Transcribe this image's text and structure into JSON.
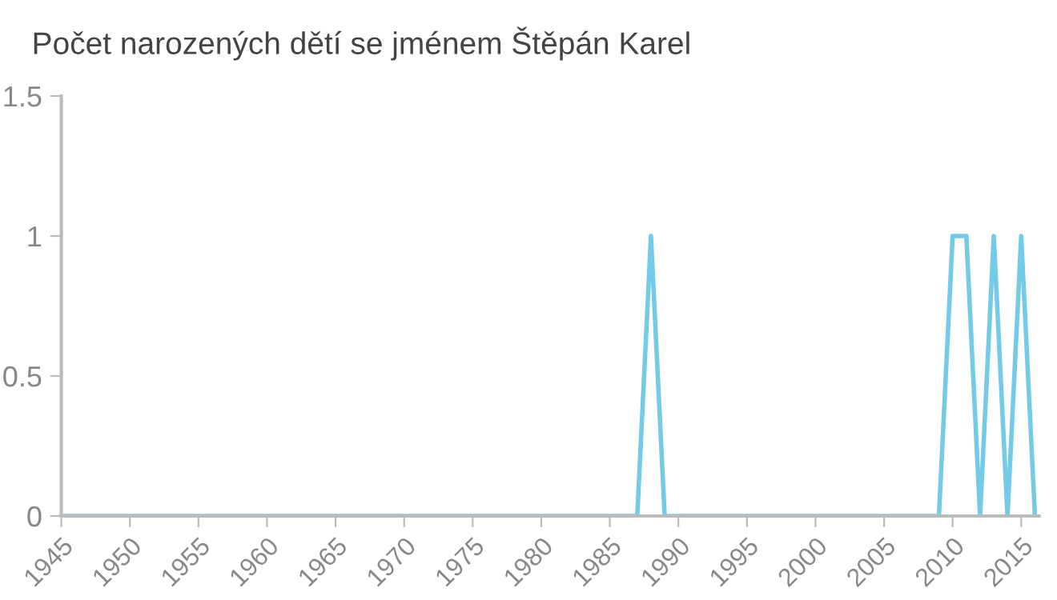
{
  "chart_data": {
    "type": "line",
    "title": "Počet narozených dětí se jménem Štěpán Karel",
    "x": [
      1945,
      1946,
      1947,
      1948,
      1949,
      1950,
      1951,
      1952,
      1953,
      1954,
      1955,
      1956,
      1957,
      1958,
      1959,
      1960,
      1961,
      1962,
      1963,
      1964,
      1965,
      1966,
      1967,
      1968,
      1969,
      1970,
      1971,
      1972,
      1973,
      1974,
      1975,
      1976,
      1977,
      1978,
      1979,
      1980,
      1981,
      1982,
      1983,
      1984,
      1985,
      1986,
      1987,
      1988,
      1989,
      1990,
      1991,
      1992,
      1993,
      1994,
      1995,
      1996,
      1997,
      1998,
      1999,
      2000,
      2001,
      2002,
      2003,
      2004,
      2005,
      2006,
      2007,
      2008,
      2009,
      2010,
      2011,
      2012,
      2013,
      2014,
      2015,
      2016
    ],
    "series": [
      {
        "color": "#74cbe8",
        "values": [
          0,
          0,
          0,
          0,
          0,
          0,
          0,
          0,
          0,
          0,
          0,
          0,
          0,
          0,
          0,
          0,
          0,
          0,
          0,
          0,
          0,
          0,
          0,
          0,
          0,
          0,
          0,
          0,
          0,
          0,
          0,
          0,
          0,
          0,
          0,
          0,
          0,
          0,
          0,
          0,
          0,
          0,
          0,
          1,
          0,
          0,
          0,
          0,
          0,
          0,
          0,
          0,
          0,
          0,
          0,
          0,
          0,
          0,
          0,
          0,
          0,
          0,
          0,
          0,
          0,
          1,
          1,
          0,
          1,
          0,
          1,
          0
        ]
      }
    ],
    "xlim": [
      1945,
      2016.3
    ],
    "xticks": [
      1945,
      1950,
      1955,
      1960,
      1965,
      1970,
      1975,
      1980,
      1985,
      1990,
      1995,
      2000,
      2005,
      2010,
      2015
    ],
    "ylim": [
      0,
      1.5
    ],
    "yticks": [
      0,
      0.5,
      1,
      1.5
    ],
    "grid": false,
    "legend": false,
    "marker": "none",
    "line_style": "solid"
  }
}
